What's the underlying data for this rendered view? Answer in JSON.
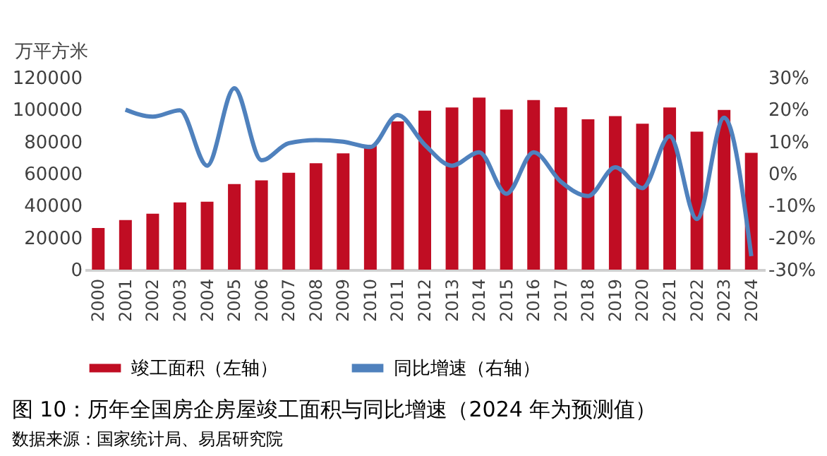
{
  "chart_data": {
    "type": "bar",
    "title": "图 10：历年全国房企房屋竣工面积与同比增速（2024 年为预测值）",
    "ylabel": "万平方米",
    "annotations": [
      "数据来源：国家统计局、易居研究院"
    ],
    "categories": [
      "2000",
      "2001",
      "2002",
      "2003",
      "2004",
      "2005",
      "2006",
      "2007",
      "2008",
      "2009",
      "2010",
      "2011",
      "2012",
      "2013",
      "2014",
      "2015",
      "2016",
      "2017",
      "2018",
      "2019",
      "2020",
      "2021",
      "2022",
      "2023",
      "2024"
    ],
    "series": [
      {
        "name": "竣工面积（左轴）",
        "color": "#c00d23",
        "values": [
          26000,
          31000,
          35000,
          42000,
          42500,
          53500,
          55800,
          60600,
          66500,
          72700,
          78000,
          92600,
          99400,
          101400,
          107500,
          100000,
          106000,
          101500,
          94000,
          96000,
          91200,
          101400,
          86200,
          99800,
          73000
        ]
      },
      {
        "name": "同比增速（右轴）",
        "color": "#4f81bd",
        "type": "line",
        "axis": "y2",
        "values": [
          null,
          20,
          17.8,
          19.8,
          2.5,
          26.7,
          4.2,
          9.5,
          10.5,
          10,
          8.3,
          18.3,
          9,
          2.5,
          6.7,
          -6.3,
          6.7,
          -2.5,
          -7,
          2,
          -4.5,
          11.7,
          -14.2,
          17.5,
          -25.8
        ]
      }
    ],
    "ylim": [
      0,
      120000
    ],
    "yticks": [
      0,
      20000,
      40000,
      60000,
      80000,
      100000,
      120000
    ],
    "y2lim": [
      -30,
      30
    ],
    "y2ticks": [
      {
        "value": -30,
        "label": "-30%"
      },
      {
        "value": -20,
        "label": "-20%"
      },
      {
        "value": -10,
        "label": "-10%"
      },
      {
        "value": 0,
        "label": "0%"
      },
      {
        "value": 10,
        "label": "10%"
      },
      {
        "value": 20,
        "label": "20%"
      },
      {
        "value": 30,
        "label": "30%"
      }
    ],
    "grid": false,
    "legend": "bottom",
    "marker": "none",
    "line_style": "solid"
  }
}
